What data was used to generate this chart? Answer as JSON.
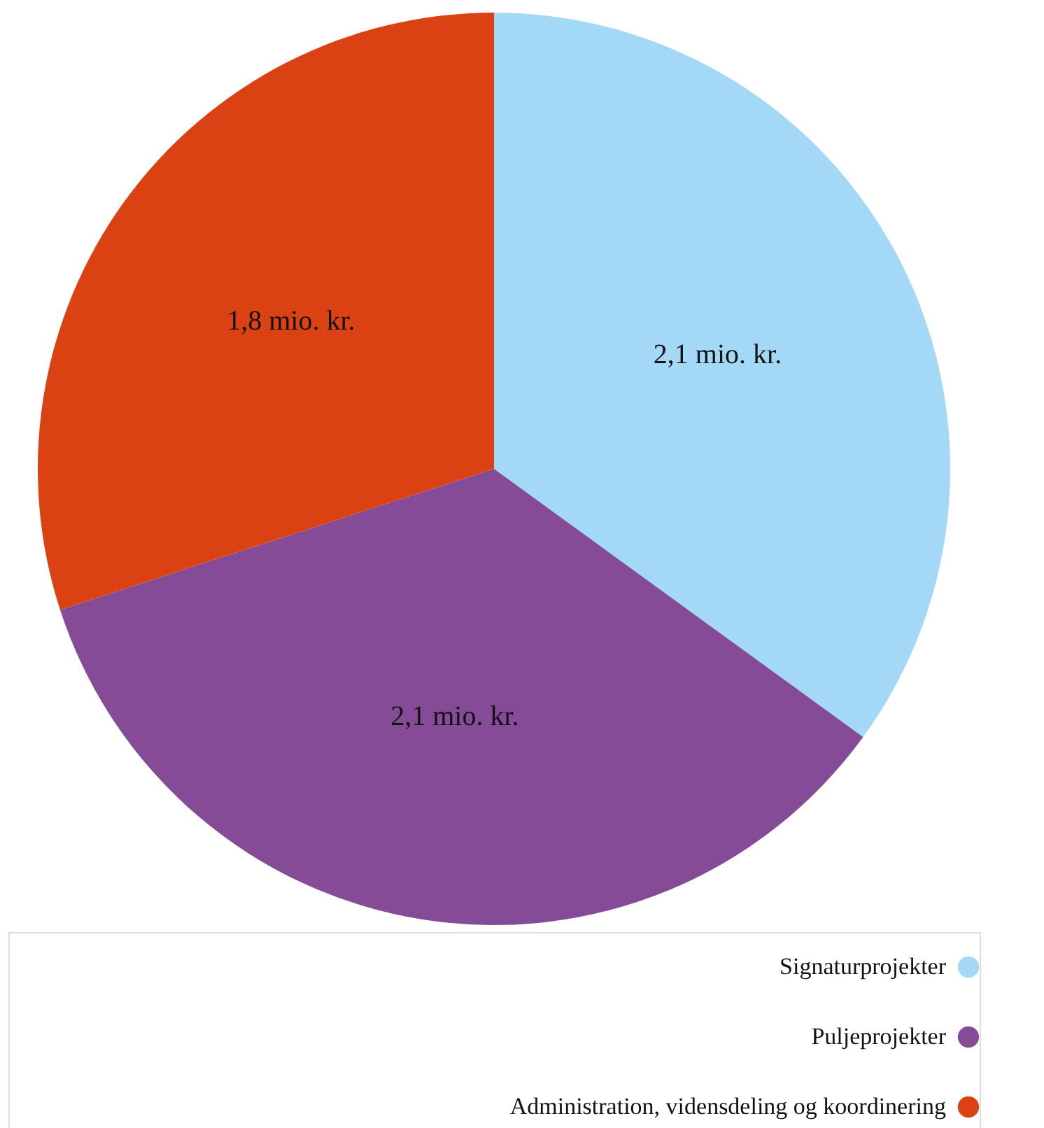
{
  "chart_data": {
    "type": "pie",
    "categories": [
      "Signaturprojekter",
      "Puljeprojekter",
      "Administration, vidensdeling og koordinering"
    ],
    "values": [
      2.1,
      2.1,
      1.8
    ],
    "value_labels": [
      "2,1 mio. kr.",
      "2,1 mio. kr.",
      "1,8 mio. kr."
    ],
    "colors": [
      "#a3d9f7",
      "#864b96",
      "#db4213"
    ],
    "legend": "bottom right"
  }
}
